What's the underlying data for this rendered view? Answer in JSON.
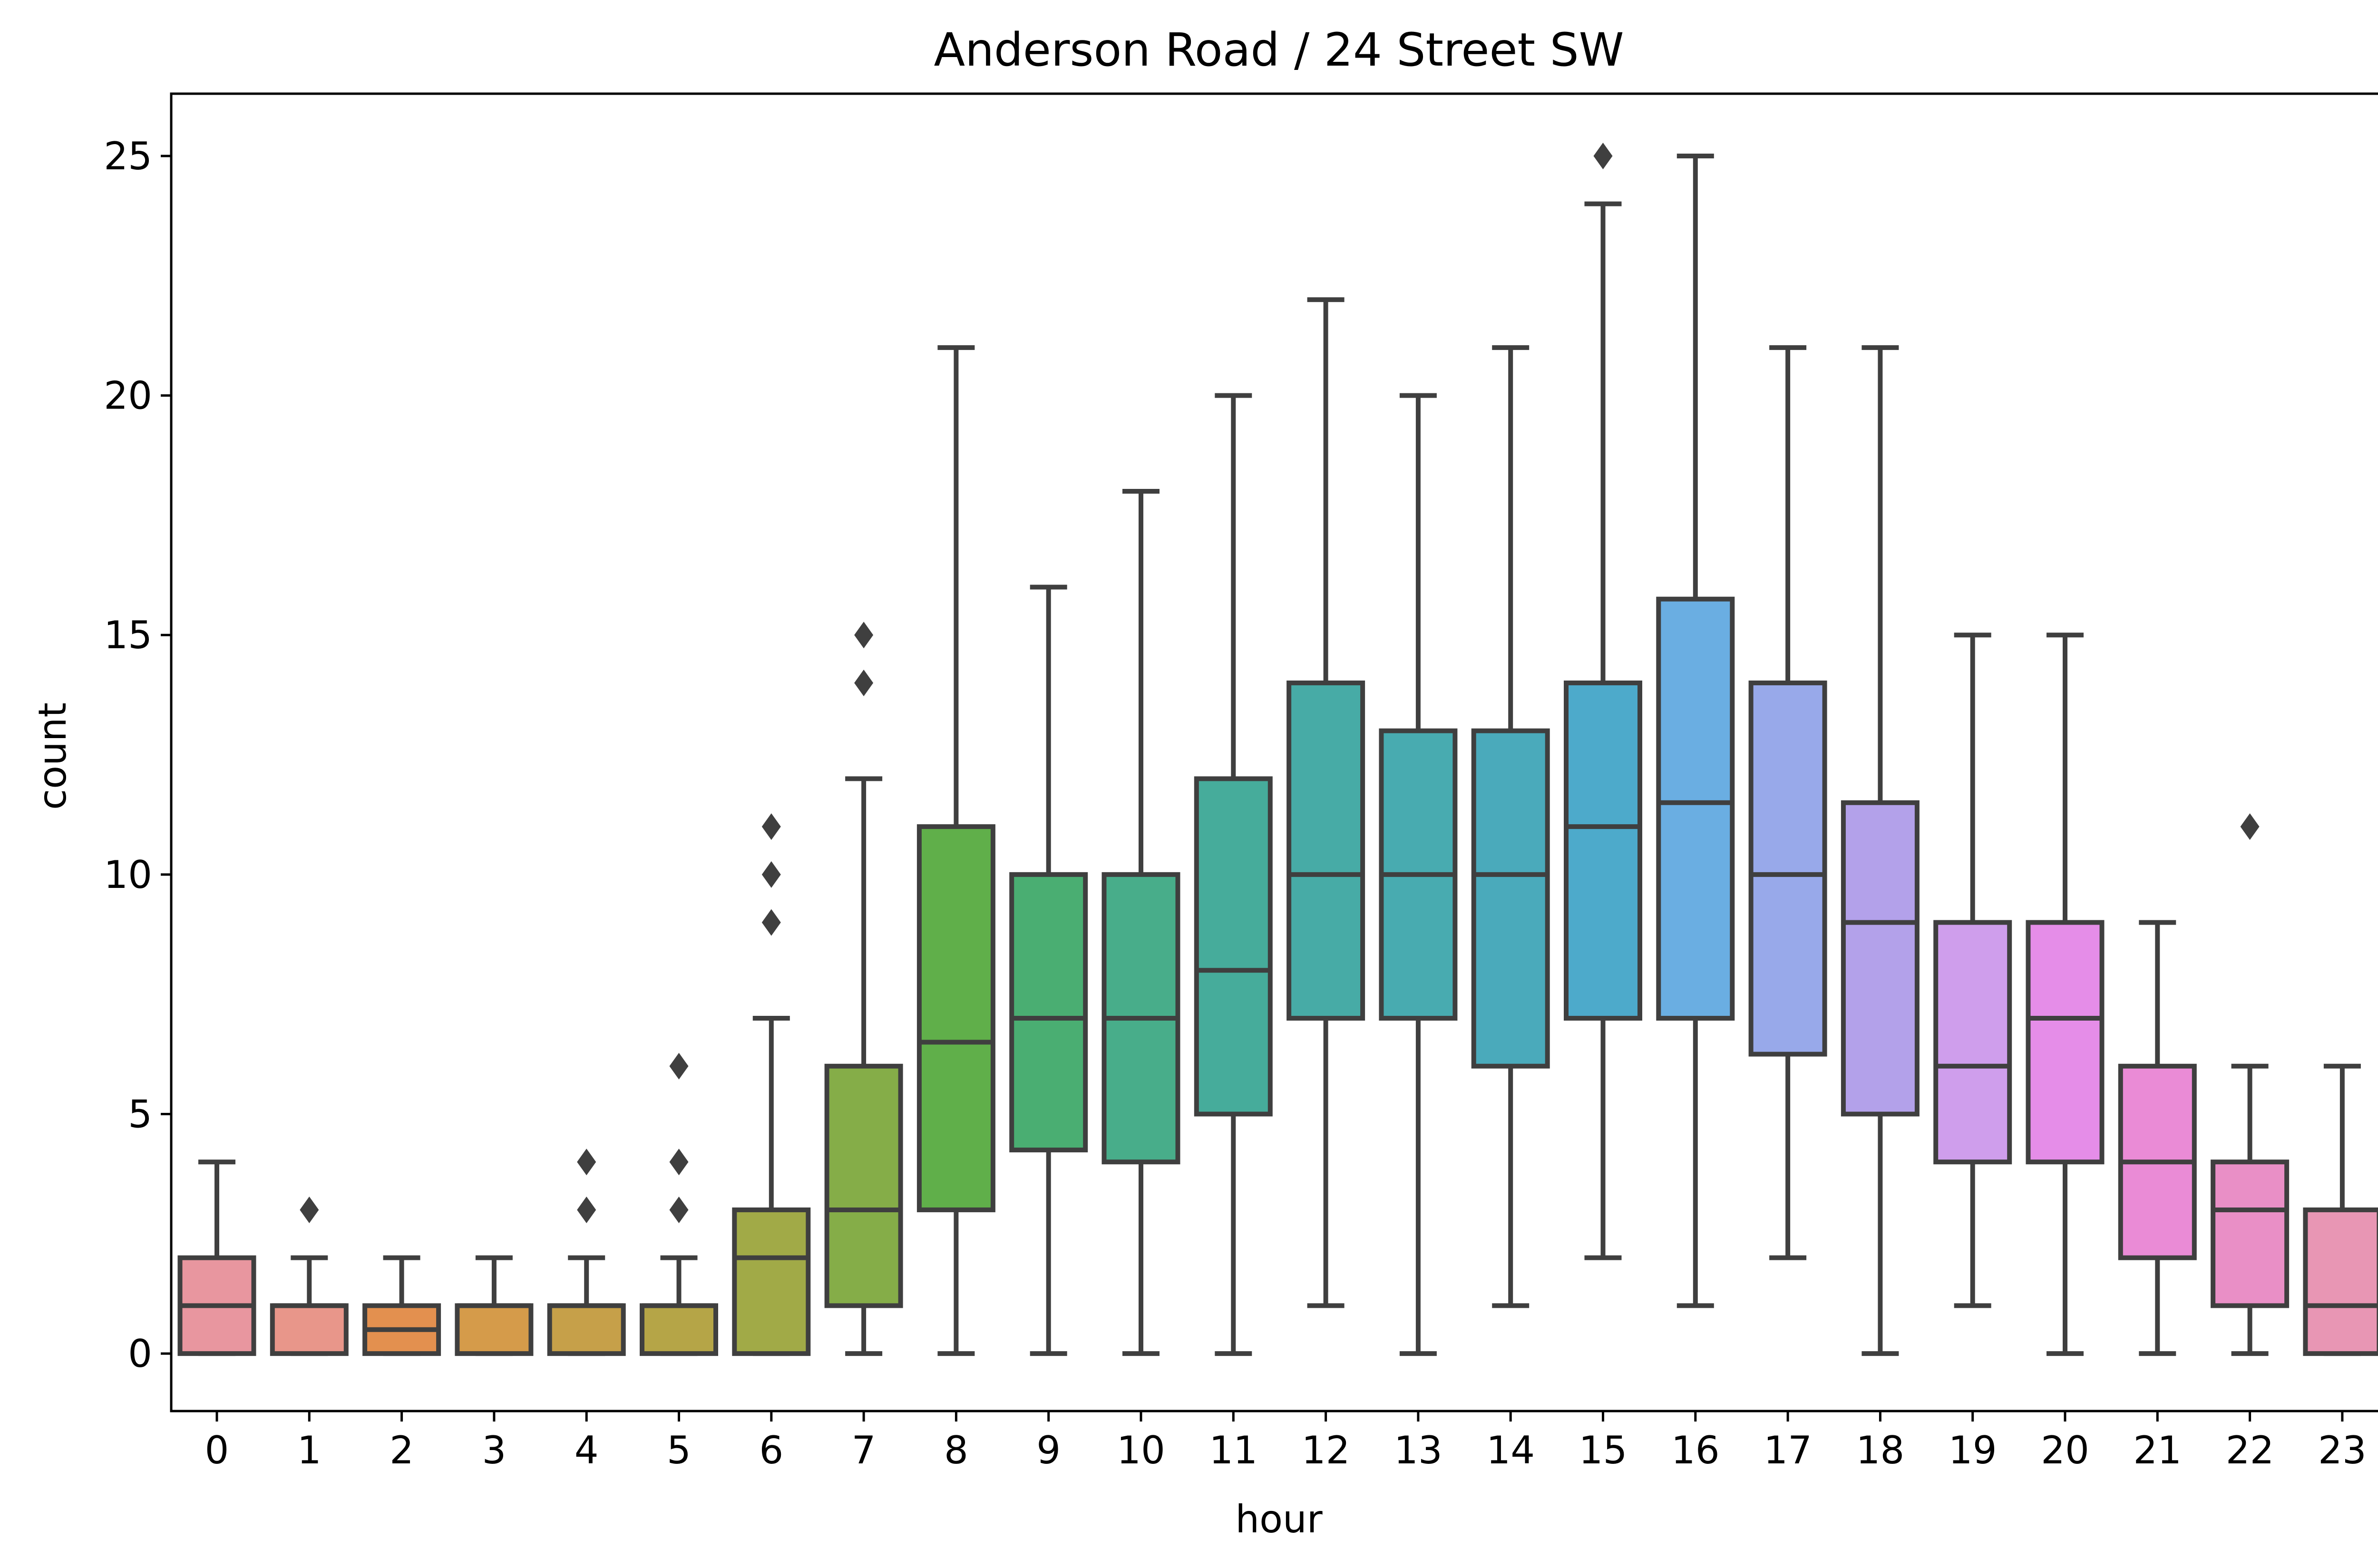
{
  "chart_data": {
    "type": "box",
    "title": "Anderson Road / 24 Street SW",
    "xlabel": "hour",
    "ylabel": "count",
    "ylim": [
      -1.2,
      26.3
    ],
    "yticks": [
      0,
      5,
      10,
      15,
      20,
      25
    ],
    "grid": false,
    "legend": "none",
    "categories": [
      "0",
      "1",
      "2",
      "3",
      "4",
      "5",
      "6",
      "7",
      "8",
      "9",
      "10",
      "11",
      "12",
      "13",
      "14",
      "15",
      "16",
      "17",
      "18",
      "19",
      "20",
      "21",
      "22",
      "23"
    ],
    "boxes": [
      {
        "hour": "0",
        "whisker_low": 0,
        "q1": 0,
        "median": 1,
        "q3": 2,
        "whisker_high": 4,
        "outliers": [],
        "color": "#e8969f"
      },
      {
        "hour": "1",
        "whisker_low": 0,
        "q1": 0,
        "median": 1,
        "q3": 1,
        "whisker_high": 2,
        "outliers": [
          3
        ],
        "color": "#e8968a"
      },
      {
        "hour": "2",
        "whisker_low": 0,
        "q1": 0,
        "median": 0.5,
        "q3": 1,
        "whisker_high": 2,
        "outliers": [],
        "color": "#e3904f"
      },
      {
        "hour": "3",
        "whisker_low": 0,
        "q1": 0,
        "median": 1,
        "q3": 1,
        "whisker_high": 2,
        "outliers": [],
        "color": "#d59b4a"
      },
      {
        "hour": "4",
        "whisker_low": 0,
        "q1": 0,
        "median": 1,
        "q3": 1,
        "whisker_high": 2,
        "outliers": [
          3,
          4
        ],
        "color": "#c6a049"
      },
      {
        "hour": "5",
        "whisker_low": 0,
        "q1": 0,
        "median": 1,
        "q3": 1,
        "whisker_high": 2,
        "outliers": [
          3,
          4,
          6
        ],
        "color": "#b5a547"
      },
      {
        "hour": "6",
        "whisker_low": 0,
        "q1": 0,
        "median": 2,
        "q3": 3,
        "whisker_high": 7,
        "outliers": [
          9,
          10,
          11
        ],
        "color": "#a1aa47"
      },
      {
        "hour": "7",
        "whisker_low": 0,
        "q1": 1,
        "median": 3,
        "q3": 6,
        "whisker_high": 12,
        "outliers": [
          14,
          15
        ],
        "color": "#85ad48"
      },
      {
        "hour": "8",
        "whisker_low": 0,
        "q1": 3,
        "median": 6.5,
        "q3": 11,
        "whisker_high": 21,
        "outliers": [],
        "color": "#60af4a"
      },
      {
        "hour": "9",
        "whisker_low": 0,
        "q1": 4.25,
        "median": 7,
        "q3": 10,
        "whisker_high": 16,
        "outliers": [],
        "color": "#4aae72"
      },
      {
        "hour": "10",
        "whisker_low": 0,
        "q1": 4,
        "median": 7,
        "q3": 10,
        "whisker_high": 18,
        "outliers": [],
        "color": "#48ad8a"
      },
      {
        "hour": "11",
        "whisker_low": 0,
        "q1": 5,
        "median": 8,
        "q3": 12,
        "whisker_high": 20,
        "outliers": [],
        "color": "#46ac9b"
      },
      {
        "hour": "12",
        "whisker_low": 1,
        "q1": 7,
        "median": 10,
        "q3": 14,
        "whisker_high": 22,
        "outliers": [],
        "color": "#47aba6"
      },
      {
        "hour": "13",
        "whisker_low": 0,
        "q1": 7,
        "median": 10,
        "q3": 13,
        "whisker_high": 20,
        "outliers": [],
        "color": "#48abb0"
      },
      {
        "hour": "14",
        "whisker_low": 1,
        "q1": 6,
        "median": 10,
        "q3": 13,
        "whisker_high": 21,
        "outliers": [],
        "color": "#4aaabb"
      },
      {
        "hour": "15",
        "whisker_low": 2,
        "q1": 7,
        "median": 11,
        "q3": 14,
        "whisker_high": 24,
        "outliers": [
          25
        ],
        "color": "#4daacb"
      },
      {
        "hour": "16",
        "whisker_low": 1,
        "q1": 7,
        "median": 11.5,
        "q3": 15.75,
        "whisker_high": 25,
        "outliers": [],
        "color": "#6aaee2"
      },
      {
        "hour": "17",
        "whisker_low": 2,
        "q1": 6.25,
        "median": 10,
        "q3": 14,
        "whisker_high": 21,
        "outliers": [],
        "color": "#98a9ea"
      },
      {
        "hour": "18",
        "whisker_low": 0,
        "q1": 5,
        "median": 9,
        "q3": 11.5,
        "whisker_high": 21,
        "outliers": [],
        "color": "#b3a1ea"
      },
      {
        "hour": "19",
        "whisker_low": 1,
        "q1": 4,
        "median": 6,
        "q3": 9,
        "whisker_high": 15,
        "outliers": [],
        "color": "#cf9eec"
      },
      {
        "hour": "20",
        "whisker_low": 0,
        "q1": 4,
        "median": 7,
        "q3": 9,
        "whisker_high": 15,
        "outliers": [],
        "color": "#e58de8"
      },
      {
        "hour": "21",
        "whisker_low": 0,
        "q1": 2,
        "median": 4,
        "q3": 6,
        "whisker_high": 9,
        "outliers": [],
        "color": "#ea8bd6"
      },
      {
        "hour": "22",
        "whisker_low": 0,
        "q1": 1,
        "median": 3,
        "q3": 4,
        "whisker_high": 6,
        "outliers": [
          11
        ],
        "color": "#e98fc6"
      },
      {
        "hour": "23",
        "whisker_low": 0,
        "q1": 0,
        "median": 1,
        "q3": 3,
        "whisker_high": 6,
        "outliers": [],
        "color": "#e896b4"
      }
    ],
    "line_color": "#3f3f3f"
  }
}
